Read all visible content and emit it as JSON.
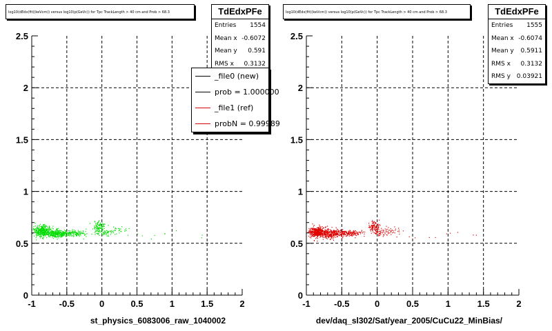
{
  "colors": {
    "new_series": "#00dd00",
    "ref_series": "#e00000",
    "grid": "#000000"
  },
  "panels": [
    {
      "title": "log10(dEdx(fit)(keVcm)) versus log10(p(GeVc)) for Tpc TrackLength > 40 cm and Prob > 68.3",
      "stats": {
        "name": "TdEdxPFe",
        "rows": [
          {
            "label": "Entries",
            "value": "1554"
          },
          {
            "label": "Mean x",
            "value": "-0.6072"
          },
          {
            "label": "Mean y",
            "value": "0.591"
          },
          {
            "label": "RMS x",
            "value": "0.3132"
          }
        ]
      },
      "xlabel": "st_physics_6083006_raw_1040002",
      "legend": [
        {
          "label": "_file0 (new)",
          "color": "#000000"
        },
        {
          "label": "prob = 1.000000",
          "color": "#000000"
        },
        {
          "label": "_file1 (ref)",
          "color": "#dd0000"
        },
        {
          "label": "probN = 0.99989",
          "color": "#dd0000"
        }
      ]
    },
    {
      "title": "log10(dEdx(fit)(keVcm)) versus log10(p(GeVc)) for Tpc TrackLength > 40 cm and Prob > 68.3",
      "stats": {
        "name": "TdEdxPFe",
        "rows": [
          {
            "label": "Entries",
            "value": "1555"
          },
          {
            "label": "Mean x",
            "value": "-0.6074"
          },
          {
            "label": "Mean y",
            "value": "0.5911"
          },
          {
            "label": "RMS x",
            "value": "0.3132"
          },
          {
            "label": "RMS y",
            "value": "0.03921"
          }
        ]
      },
      "xlabel": "dev/daq_sl302/Sat/year_2005/CuCu22_MinBias/"
    }
  ],
  "chart_data": [
    {
      "type": "scatter",
      "title": "log10(dEdx(fit)(keVcm)) versus log10(p(GeVc)) for Tpc TrackLength > 40 cm and Prob > 68.3",
      "xlabel": "st_physics_6083006_raw_1040002",
      "ylabel": "",
      "xlim": [
        -1,
        2
      ],
      "ylim": [
        0,
        2.5
      ],
      "xticks": [
        "-1",
        "-0.5",
        "0",
        "0.5",
        "1",
        "1.5",
        "2"
      ],
      "yticks": [
        "0",
        "0.5",
        "1",
        "1.5",
        "2",
        "2.5"
      ],
      "grid": true,
      "series": [
        {
          "name": "_file0 (new)",
          "color": "#00dd00",
          "entries": 1554,
          "clusters": [
            {
              "x": -0.85,
              "y": 0.62,
              "sx": 0.06,
              "sy": 0.025,
              "n": 420
            },
            {
              "x": -0.65,
              "y": 0.595,
              "sx": 0.08,
              "sy": 0.02,
              "n": 260
            },
            {
              "x": -0.4,
              "y": 0.6,
              "sx": 0.1,
              "sy": 0.015,
              "n": 150
            },
            {
              "x": -0.05,
              "y": 0.66,
              "sx": 0.04,
              "sy": 0.03,
              "n": 110
            },
            {
              "x": 0.08,
              "y": 0.6,
              "sx": 0.06,
              "sy": 0.015,
              "n": 40
            },
            {
              "x": 0.25,
              "y": 0.63,
              "sx": 0.08,
              "sy": 0.02,
              "n": 25
            },
            {
              "x": 0.6,
              "y": 0.58,
              "sx": 0.3,
              "sy": 0.02,
              "n": 8
            },
            {
              "x": 1.38,
              "y": 0.58,
              "sx": 0.02,
              "sy": 0.01,
              "n": 2
            }
          ]
        }
      ]
    },
    {
      "type": "scatter",
      "title": "log10(dEdx(fit)(keVcm)) versus log10(p(GeVc)) for Tpc TrackLength > 40 cm and Prob > 68.3",
      "xlabel": "dev/daq_sl302/Sat/year_2005/CuCu22_MinBias/",
      "ylabel": "",
      "xlim": [
        -1,
        2
      ],
      "ylim": [
        0,
        2.5
      ],
      "xticks": [
        "-1",
        "-0.5",
        "0",
        "0.5",
        "1",
        "1.5",
        "2"
      ],
      "yticks": [
        "0",
        "0.5",
        "1",
        "1.5",
        "2",
        "2.5"
      ],
      "grid": true,
      "series": [
        {
          "name": "_file1 (ref)",
          "color": "#e00000",
          "entries": 1555,
          "clusters": [
            {
              "x": -0.85,
              "y": 0.61,
              "sx": 0.06,
              "sy": 0.025,
              "n": 420
            },
            {
              "x": -0.65,
              "y": 0.595,
              "sx": 0.08,
              "sy": 0.02,
              "n": 260
            },
            {
              "x": -0.4,
              "y": 0.6,
              "sx": 0.1,
              "sy": 0.015,
              "n": 150
            },
            {
              "x": -0.05,
              "y": 0.66,
              "sx": 0.04,
              "sy": 0.03,
              "n": 110
            },
            {
              "x": 0.08,
              "y": 0.6,
              "sx": 0.06,
              "sy": 0.015,
              "n": 40
            },
            {
              "x": 0.25,
              "y": 0.63,
              "sx": 0.08,
              "sy": 0.02,
              "n": 25
            },
            {
              "x": 0.6,
              "y": 0.58,
              "sx": 0.3,
              "sy": 0.02,
              "n": 8
            },
            {
              "x": 1.38,
              "y": 0.58,
              "sx": 0.02,
              "sy": 0.01,
              "n": 2
            }
          ]
        }
      ]
    }
  ]
}
